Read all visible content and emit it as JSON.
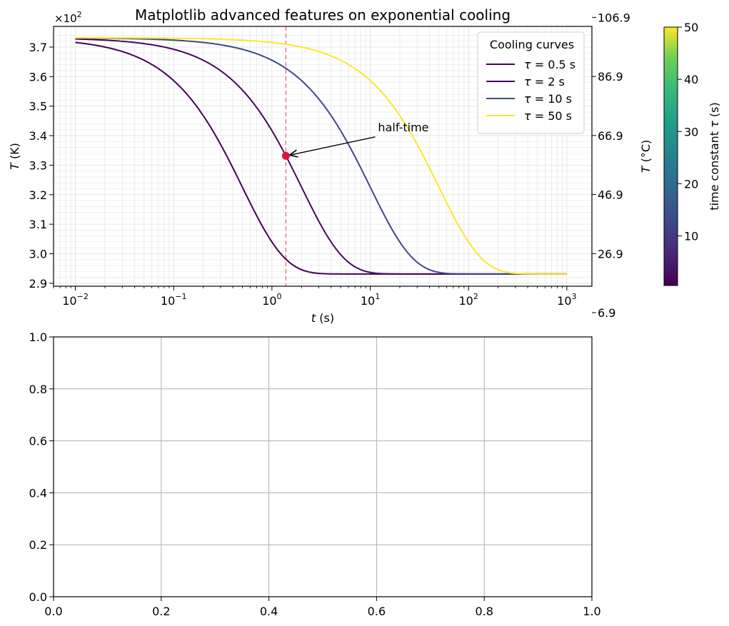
{
  "chart_data": [
    {
      "type": "line",
      "title": "Matplotlib advanced features on exponential cooling",
      "xlabel_italic": "t",
      "xlabel_unit": " (s)",
      "ylabel_italic": "T",
      "ylabel_unit": " (K)",
      "y_offset_base": "×10",
      "y_offset_exp": "2",
      "xscale": "log",
      "xlim": [
        0.006,
        1800
      ],
      "x_tick_values": [
        0.01,
        0.1,
        1,
        10,
        100,
        1000
      ],
      "x_tick_labels": [
        {
          "base": "10",
          "exp": "−2"
        },
        {
          "base": "10",
          "exp": "−1"
        },
        {
          "base": "10",
          "exp": "0"
        },
        {
          "base": "10",
          "exp": "1"
        },
        {
          "base": "10",
          "exp": "2"
        },
        {
          "base": "10",
          "exp": "3"
        }
      ],
      "ylim": [
        289.0,
        377.0
      ],
      "y_ticks": [
        290,
        300,
        310,
        320,
        330,
        340,
        350,
        360,
        370
      ],
      "y_tick_labels": [
        "2.9",
        "3.0",
        "3.1",
        "3.2",
        "3.3",
        "3.4",
        "3.5",
        "3.6",
        "3.7"
      ],
      "grid": "major and minor",
      "model": {
        "T_ambient_K": 293.15,
        "T_initial_K": 373.15,
        "x_min": 0.01,
        "x_max": 1000
      },
      "series": [
        {
          "tau": 0.5,
          "color": "#440154",
          "label_pre": "τ",
          "label_eq": " = 0.5",
          "label_unit": " s"
        },
        {
          "tau": 2,
          "color": "#46085c",
          "label_pre": "τ",
          "label_eq": " = 2",
          "label_unit": " s"
        },
        {
          "tau": 10,
          "color": "#3e4989",
          "label_pre": "τ",
          "label_eq": " = 10",
          "label_unit": " s"
        },
        {
          "tau": 50,
          "color": "#fde725",
          "label_pre": "τ",
          "label_eq": " = 50",
          "label_unit": " s"
        }
      ],
      "legend": {
        "title": "Cooling curves",
        "placement": "upper-right"
      },
      "annotation": {
        "text": "half-time",
        "x": 1.386,
        "y": 333.15,
        "text_x": 12,
        "text_y": 341.5,
        "marker_color": "#dc143c"
      },
      "vline": {
        "x": 1.386,
        "color": "#e8687a",
        "style": "dashed"
      },
      "secondary_y": {
        "label_italic": "T",
        "label_unit": " (°C)",
        "ticks": [
          6.9,
          26.9,
          46.9,
          66.9,
          86.9,
          106.9
        ],
        "tick_labels": [
          "6.9",
          "26.9",
          "46.9",
          "66.9",
          "86.9",
          "106.9"
        ],
        "kelvin_offset": 273.15
      },
      "colorbar": {
        "label_pre": "time constant ",
        "label_italic": "τ",
        "label_unit": " (s)",
        "range": [
          0.5,
          50
        ],
        "ticks": [
          10,
          20,
          30,
          40,
          50
        ],
        "tick_labels": [
          "10",
          "20",
          "30",
          "40",
          "50"
        ],
        "colormap": "viridis"
      }
    },
    {
      "type": "line",
      "xlim": [
        0,
        1
      ],
      "ylim": [
        0,
        1
      ],
      "x_ticks": [
        0.0,
        0.2,
        0.4,
        0.6,
        0.8,
        1.0
      ],
      "x_tick_labels": [
        "0.0",
        "0.2",
        "0.4",
        "0.6",
        "0.8",
        "1.0"
      ],
      "y_ticks": [
        0.0,
        0.2,
        0.4,
        0.6,
        0.8,
        1.0
      ],
      "y_tick_labels": [
        "0.0",
        "0.2",
        "0.4",
        "0.6",
        "0.8",
        "1.0"
      ],
      "grid": "major",
      "series": []
    }
  ]
}
